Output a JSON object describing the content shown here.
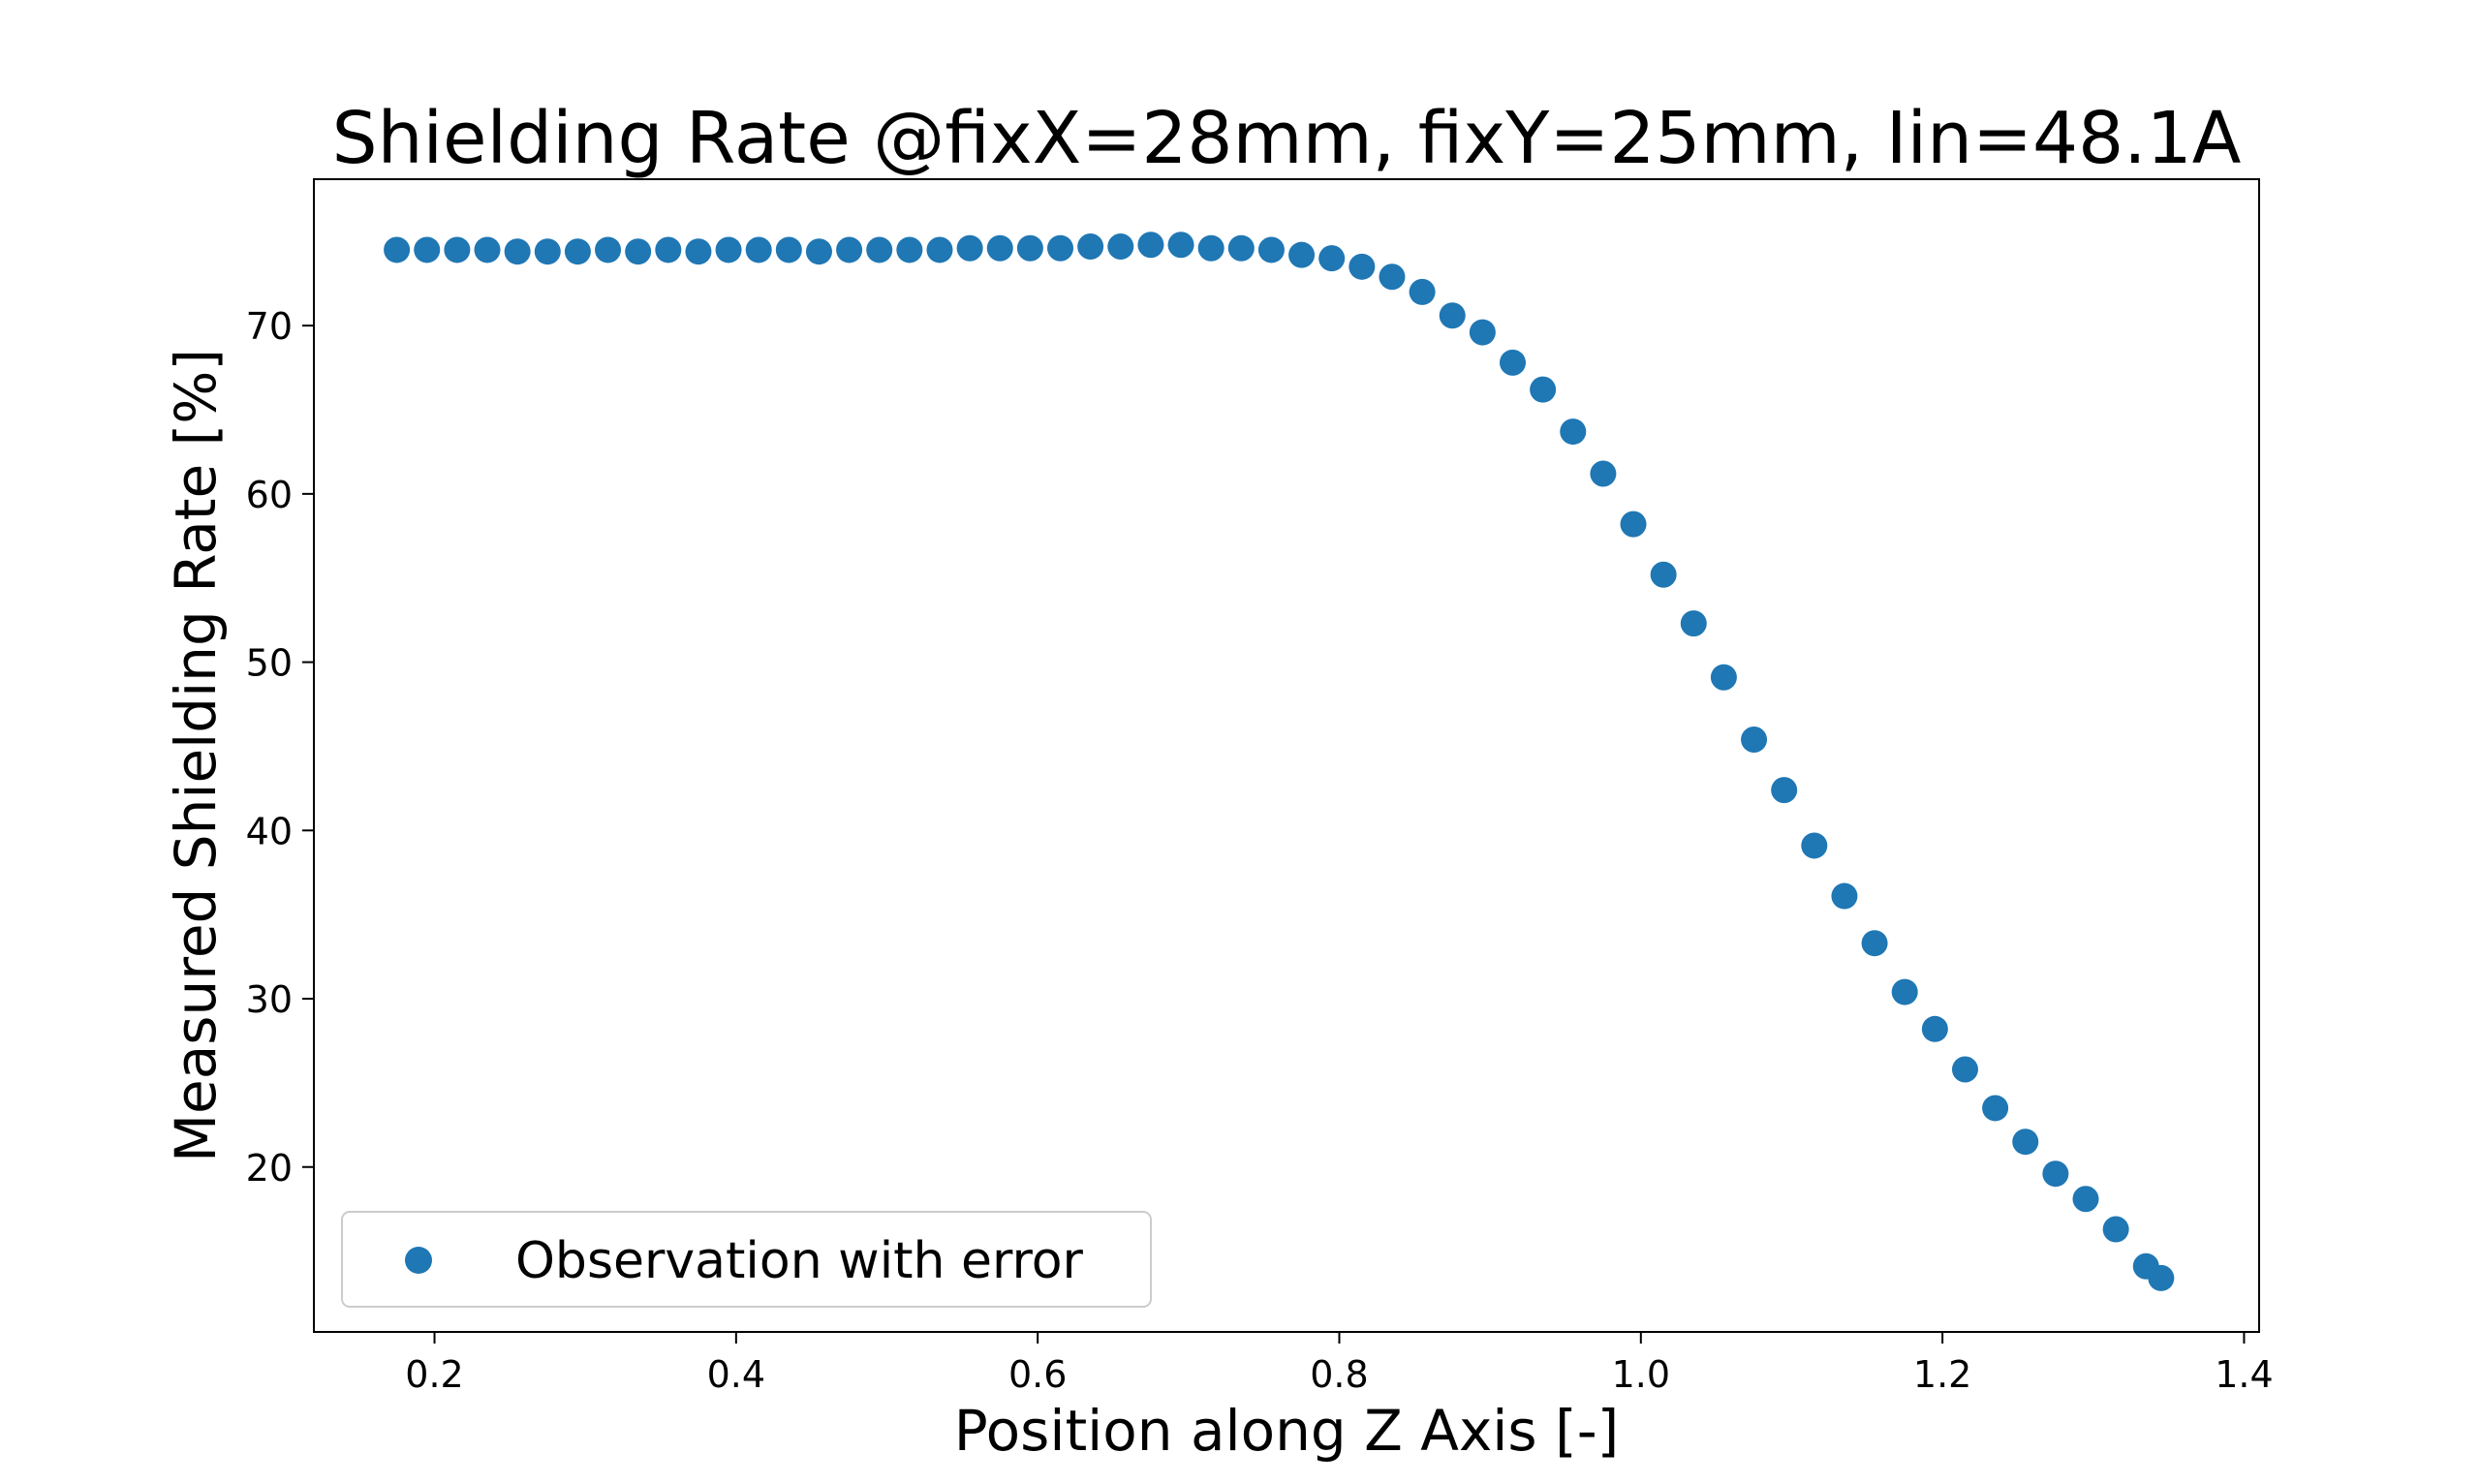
{
  "chart_data": {
    "type": "scatter",
    "title": "Shielding Rate @fixX=28mm, fixY=25mm, Iin=48.1A",
    "xlabel": "Position along Z Axis [-]",
    "ylabel": "Measured Shielding Rate [%]",
    "xlim": [
      0.12,
      1.41
    ],
    "ylim": [
      10.2,
      78.7
    ],
    "xticks": [
      0.2,
      0.4,
      0.6,
      0.8,
      1.0,
      1.2,
      1.4
    ],
    "xtick_labels": [
      "0.2",
      "0.4",
      "0.6",
      "0.8",
      "1.0",
      "1.2",
      "1.4"
    ],
    "yticks": [
      20,
      30,
      40,
      50,
      60,
      70
    ],
    "ytick_labels": [
      "20",
      "30",
      "40",
      "50",
      "60",
      "70"
    ],
    "grid": false,
    "legend_position": "lower-left",
    "series": [
      {
        "name": "Observation with error",
        "color": "#1f77b4",
        "x": [
          0.175,
          0.195,
          0.215,
          0.235,
          0.255,
          0.275,
          0.295,
          0.315,
          0.335,
          0.355,
          0.375,
          0.395,
          0.415,
          0.435,
          0.455,
          0.475,
          0.495,
          0.515,
          0.535,
          0.555,
          0.575,
          0.595,
          0.615,
          0.635,
          0.655,
          0.675,
          0.695,
          0.715,
          0.735,
          0.755,
          0.775,
          0.795,
          0.815,
          0.835,
          0.855,
          0.875,
          0.895,
          0.915,
          0.935,
          0.955,
          0.975,
          0.995,
          1.015,
          1.035,
          1.055,
          1.075,
          1.095,
          1.115,
          1.135,
          1.155,
          1.175,
          1.195,
          1.215,
          1.235,
          1.255,
          1.275,
          1.295,
          1.315,
          1.335,
          1.345
        ],
        "y": [
          74.5,
          74.5,
          74.5,
          74.5,
          74.4,
          74.4,
          74.4,
          74.5,
          74.4,
          74.5,
          74.4,
          74.5,
          74.5,
          74.5,
          74.4,
          74.5,
          74.5,
          74.5,
          74.5,
          74.6,
          74.6,
          74.6,
          74.6,
          74.7,
          74.7,
          74.8,
          74.8,
          74.6,
          74.6,
          74.5,
          74.2,
          74.0,
          73.5,
          72.9,
          72.0,
          70.6,
          69.6,
          67.8,
          66.2,
          63.7,
          61.2,
          58.2,
          55.2,
          52.3,
          49.1,
          45.4,
          42.4,
          39.1,
          36.1,
          33.3,
          30.4,
          28.2,
          25.8,
          23.5,
          21.5,
          19.6,
          18.1,
          16.3,
          14.1,
          13.4
        ]
      }
    ]
  }
}
